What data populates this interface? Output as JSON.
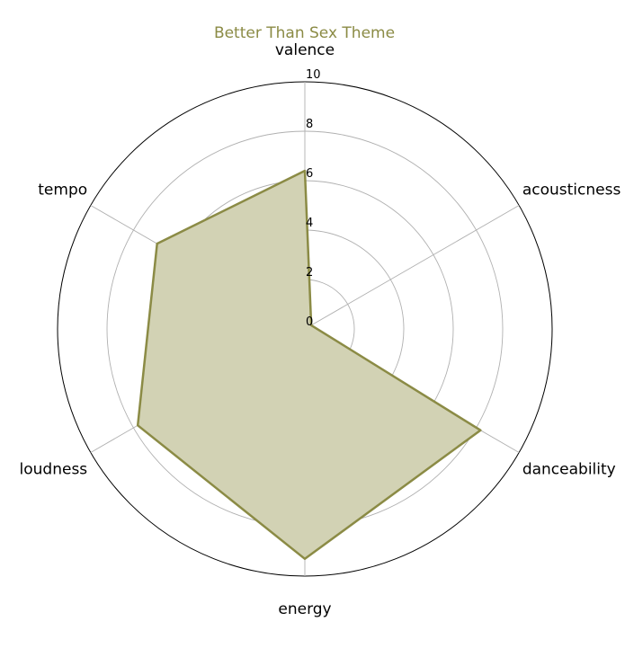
{
  "chart_data": {
    "type": "radar",
    "title": "Better Than Sex Theme",
    "axes": [
      "valence",
      "acousticness",
      "danceability",
      "energy",
      "loudness",
      "tempo"
    ],
    "values": [
      6.4,
      0.3,
      8.2,
      9.3,
      7.8,
      6.9
    ],
    "rlim": [
      0,
      10
    ],
    "r_ticks": [
      "0",
      "2",
      "4",
      "6",
      "8",
      "10"
    ],
    "grid": true,
    "series_color": "#8b8b45",
    "fill_color": "#d2d2b4"
  }
}
